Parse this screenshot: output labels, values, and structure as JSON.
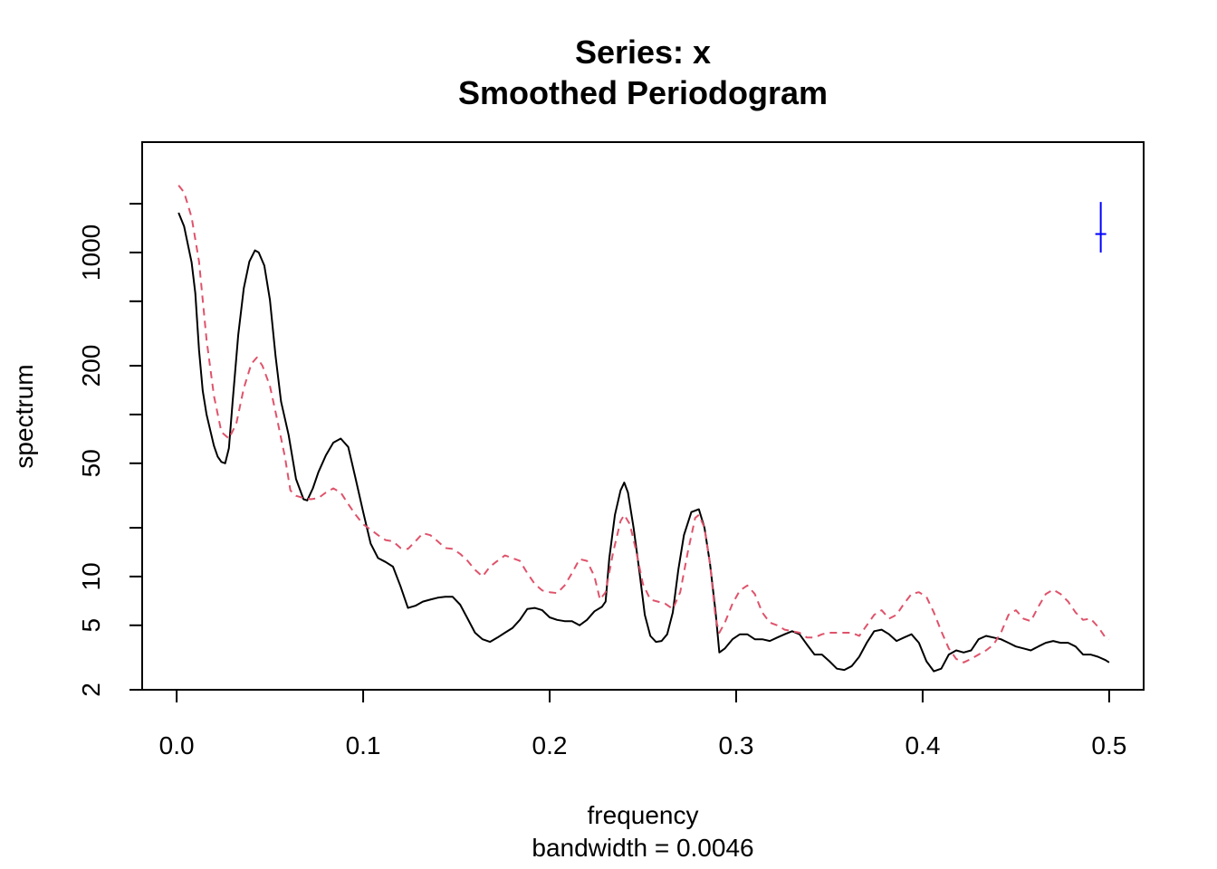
{
  "chart_data": {
    "type": "line",
    "title": "Series: x",
    "subtitle": "Smoothed Periodogram",
    "xlabel": "frequency",
    "xsublabel": "bandwidth = 0.0046",
    "ylabel": "spectrum",
    "xlim": [
      -0.0185,
      0.5185
    ],
    "ylim": [
      2,
      4800
    ],
    "ylog": true,
    "xticks": [
      0.0,
      0.1,
      0.2,
      0.3,
      0.4,
      0.5
    ],
    "xtick_labels": [
      "0.0",
      "0.1",
      "0.2",
      "0.3",
      "0.4",
      "0.5"
    ],
    "yticks": [
      2,
      5,
      10,
      20,
      50,
      100,
      200,
      500,
      1000,
      2000
    ],
    "ytick_labels": [
      "2",
      "5",
      "10",
      "",
      "50",
      "",
      "200",
      "",
      "1000",
      ""
    ],
    "series": [
      {
        "color": "#000000",
        "dash": "",
        "points": [
          [
            0.001,
            1760
          ],
          [
            0.004,
            1450
          ],
          [
            0.008,
            870
          ],
          [
            0.01,
            560
          ],
          [
            0.012,
            250
          ],
          [
            0.014,
            140
          ],
          [
            0.016,
            100
          ],
          [
            0.018,
            80
          ],
          [
            0.02,
            64
          ],
          [
            0.022,
            55
          ],
          [
            0.024,
            51
          ],
          [
            0.026,
            50
          ],
          [
            0.028,
            62
          ],
          [
            0.03,
            120
          ],
          [
            0.033,
            310
          ],
          [
            0.036,
            600
          ],
          [
            0.039,
            880
          ],
          [
            0.042,
            1030
          ],
          [
            0.044,
            1000
          ],
          [
            0.047,
            830
          ],
          [
            0.05,
            510
          ],
          [
            0.053,
            230
          ],
          [
            0.056,
            120
          ],
          [
            0.06,
            75
          ],
          [
            0.064,
            40
          ],
          [
            0.068,
            30
          ],
          [
            0.07,
            29.5
          ],
          [
            0.073,
            35
          ],
          [
            0.076,
            44
          ],
          [
            0.08,
            56
          ],
          [
            0.084,
            67
          ],
          [
            0.088,
            71
          ],
          [
            0.092,
            63
          ],
          [
            0.096,
            40
          ],
          [
            0.1,
            25
          ],
          [
            0.104,
            16
          ],
          [
            0.108,
            13
          ],
          [
            0.112,
            12.3
          ],
          [
            0.116,
            11.5
          ],
          [
            0.12,
            8.7
          ],
          [
            0.124,
            6.4
          ],
          [
            0.128,
            6.6
          ],
          [
            0.132,
            7.0
          ],
          [
            0.136,
            7.2
          ],
          [
            0.14,
            7.4
          ],
          [
            0.144,
            7.5
          ],
          [
            0.148,
            7.5
          ],
          [
            0.152,
            6.7
          ],
          [
            0.156,
            5.5
          ],
          [
            0.16,
            4.5
          ],
          [
            0.164,
            4.1
          ],
          [
            0.168,
            3.95
          ],
          [
            0.172,
            4.2
          ],
          [
            0.176,
            4.5
          ],
          [
            0.18,
            4.8
          ],
          [
            0.184,
            5.4
          ],
          [
            0.188,
            6.3
          ],
          [
            0.192,
            6.4
          ],
          [
            0.196,
            6.2
          ],
          [
            0.2,
            5.6
          ],
          [
            0.204,
            5.4
          ],
          [
            0.208,
            5.3
          ],
          [
            0.212,
            5.3
          ],
          [
            0.216,
            5.0
          ],
          [
            0.22,
            5.4
          ],
          [
            0.224,
            6.1
          ],
          [
            0.228,
            6.5
          ],
          [
            0.23,
            7.0
          ],
          [
            0.232,
            13
          ],
          [
            0.235,
            24
          ],
          [
            0.238,
            34
          ],
          [
            0.24,
            38
          ],
          [
            0.242,
            33
          ],
          [
            0.245,
            20
          ],
          [
            0.248,
            11
          ],
          [
            0.251,
            5.8
          ],
          [
            0.254,
            4.3
          ],
          [
            0.257,
            3.95
          ],
          [
            0.26,
            4.0
          ],
          [
            0.263,
            4.4
          ],
          [
            0.266,
            6
          ],
          [
            0.269,
            11
          ],
          [
            0.272,
            18
          ],
          [
            0.276,
            25
          ],
          [
            0.28,
            26
          ],
          [
            0.283,
            20
          ],
          [
            0.286,
            12
          ],
          [
            0.289,
            6
          ],
          [
            0.291,
            3.4
          ],
          [
            0.294,
            3.6
          ],
          [
            0.298,
            4.1
          ],
          [
            0.302,
            4.4
          ],
          [
            0.306,
            4.4
          ],
          [
            0.31,
            4.1
          ],
          [
            0.314,
            4.1
          ],
          [
            0.318,
            4.0
          ],
          [
            0.322,
            4.2
          ],
          [
            0.326,
            4.4
          ],
          [
            0.33,
            4.6
          ],
          [
            0.334,
            4.4
          ],
          [
            0.338,
            3.8
          ],
          [
            0.342,
            3.3
          ],
          [
            0.346,
            3.3
          ],
          [
            0.35,
            3.0
          ],
          [
            0.354,
            2.7
          ],
          [
            0.358,
            2.65
          ],
          [
            0.362,
            2.8
          ],
          [
            0.366,
            3.2
          ],
          [
            0.37,
            3.9
          ],
          [
            0.374,
            4.6
          ],
          [
            0.378,
            4.7
          ],
          [
            0.382,
            4.4
          ],
          [
            0.386,
            4.0
          ],
          [
            0.39,
            4.2
          ],
          [
            0.394,
            4.4
          ],
          [
            0.398,
            3.9
          ],
          [
            0.402,
            3.0
          ],
          [
            0.406,
            2.6
          ],
          [
            0.41,
            2.7
          ],
          [
            0.414,
            3.3
          ],
          [
            0.418,
            3.5
          ],
          [
            0.422,
            3.4
          ],
          [
            0.426,
            3.5
          ],
          [
            0.43,
            4.1
          ],
          [
            0.434,
            4.3
          ],
          [
            0.438,
            4.2
          ],
          [
            0.442,
            4.1
          ],
          [
            0.446,
            3.9
          ],
          [
            0.45,
            3.7
          ],
          [
            0.454,
            3.6
          ],
          [
            0.458,
            3.5
          ],
          [
            0.462,
            3.7
          ],
          [
            0.466,
            3.9
          ],
          [
            0.47,
            4.0
          ],
          [
            0.474,
            3.9
          ],
          [
            0.478,
            3.9
          ],
          [
            0.482,
            3.7
          ],
          [
            0.486,
            3.3
          ],
          [
            0.49,
            3.3
          ],
          [
            0.494,
            3.2
          ],
          [
            0.498,
            3.05
          ],
          [
            0.5,
            2.95
          ]
        ]
      },
      {
        "color": "#df536b",
        "dash": "8,6",
        "points": [
          [
            0.001,
            2600
          ],
          [
            0.004,
            2350
          ],
          [
            0.008,
            1650
          ],
          [
            0.012,
            880
          ],
          [
            0.016,
            290
          ],
          [
            0.02,
            130
          ],
          [
            0.024,
            78
          ],
          [
            0.028,
            71
          ],
          [
            0.032,
            88
          ],
          [
            0.036,
            145
          ],
          [
            0.04,
            205
          ],
          [
            0.043,
            225
          ],
          [
            0.046,
            200
          ],
          [
            0.05,
            150
          ],
          [
            0.054,
            92
          ],
          [
            0.058,
            55
          ],
          [
            0.061,
            34
          ],
          [
            0.064,
            31.5
          ],
          [
            0.068,
            30.5
          ],
          [
            0.072,
            30.0
          ],
          [
            0.076,
            30.5
          ],
          [
            0.08,
            33
          ],
          [
            0.084,
            35
          ],
          [
            0.088,
            33
          ],
          [
            0.092,
            28
          ],
          [
            0.096,
            24
          ],
          [
            0.1,
            21
          ],
          [
            0.104,
            19.5
          ],
          [
            0.108,
            18
          ],
          [
            0.112,
            16.8
          ],
          [
            0.116,
            16.5
          ],
          [
            0.12,
            15
          ],
          [
            0.124,
            14.8
          ],
          [
            0.128,
            16.5
          ],
          [
            0.132,
            18.5
          ],
          [
            0.136,
            18
          ],
          [
            0.14,
            16.5
          ],
          [
            0.144,
            15.0
          ],
          [
            0.148,
            14.8
          ],
          [
            0.152,
            13.8
          ],
          [
            0.156,
            12.5
          ],
          [
            0.16,
            11.0
          ],
          [
            0.164,
            10.0
          ],
          [
            0.168,
            11.5
          ],
          [
            0.172,
            12.5
          ],
          [
            0.176,
            13.5
          ],
          [
            0.18,
            13.0
          ],
          [
            0.184,
            12.5
          ],
          [
            0.188,
            10.5
          ],
          [
            0.192,
            9.0
          ],
          [
            0.196,
            8.2
          ],
          [
            0.2,
            8.0
          ],
          [
            0.204,
            7.9
          ],
          [
            0.208,
            8.8
          ],
          [
            0.212,
            10.5
          ],
          [
            0.216,
            12.8
          ],
          [
            0.22,
            12.5
          ],
          [
            0.224,
            10
          ],
          [
            0.227,
            7.2
          ],
          [
            0.23,
            8.0
          ],
          [
            0.234,
            14
          ],
          [
            0.238,
            22
          ],
          [
            0.24,
            24
          ],
          [
            0.243,
            21
          ],
          [
            0.246,
            15
          ],
          [
            0.25,
            9
          ],
          [
            0.254,
            7.2
          ],
          [
            0.258,
            7.0
          ],
          [
            0.262,
            6.8
          ],
          [
            0.266,
            6.3
          ],
          [
            0.27,
            8
          ],
          [
            0.274,
            14
          ],
          [
            0.278,
            23
          ],
          [
            0.28,
            24
          ],
          [
            0.283,
            20
          ],
          [
            0.286,
            12
          ],
          [
            0.289,
            5.5
          ],
          [
            0.291,
            4.5
          ],
          [
            0.294,
            5.2
          ],
          [
            0.298,
            6.8
          ],
          [
            0.302,
            8.2
          ],
          [
            0.306,
            8.8
          ],
          [
            0.31,
            7.8
          ],
          [
            0.314,
            6.0
          ],
          [
            0.318,
            5.2
          ],
          [
            0.322,
            5.0
          ],
          [
            0.326,
            4.7
          ],
          [
            0.33,
            4.6
          ],
          [
            0.334,
            4.5
          ],
          [
            0.338,
            4.2
          ],
          [
            0.342,
            4.2
          ],
          [
            0.346,
            4.4
          ],
          [
            0.35,
            4.5
          ],
          [
            0.354,
            4.5
          ],
          [
            0.358,
            4.5
          ],
          [
            0.362,
            4.5
          ],
          [
            0.366,
            4.3
          ],
          [
            0.37,
            5.0
          ],
          [
            0.374,
            5.8
          ],
          [
            0.378,
            6.2
          ],
          [
            0.382,
            5.5
          ],
          [
            0.386,
            5.8
          ],
          [
            0.39,
            6.8
          ],
          [
            0.394,
            7.8
          ],
          [
            0.398,
            8.0
          ],
          [
            0.402,
            7.5
          ],
          [
            0.406,
            6.0
          ],
          [
            0.41,
            4.6
          ],
          [
            0.414,
            3.6
          ],
          [
            0.418,
            3.1
          ],
          [
            0.422,
            2.95
          ],
          [
            0.426,
            3.1
          ],
          [
            0.43,
            3.3
          ],
          [
            0.434,
            3.5
          ],
          [
            0.438,
            3.8
          ],
          [
            0.442,
            4.5
          ],
          [
            0.446,
            5.8
          ],
          [
            0.45,
            6.2
          ],
          [
            0.454,
            5.5
          ],
          [
            0.458,
            5.3
          ],
          [
            0.462,
            6.5
          ],
          [
            0.466,
            7.8
          ],
          [
            0.47,
            8.3
          ],
          [
            0.474,
            7.8
          ],
          [
            0.478,
            7.0
          ],
          [
            0.482,
            6.0
          ],
          [
            0.486,
            5.4
          ],
          [
            0.49,
            5.5
          ],
          [
            0.494,
            4.9
          ],
          [
            0.498,
            4.2
          ],
          [
            0.5,
            4.1
          ]
        ]
      }
    ],
    "ci_bar": {
      "color": "#0000ff",
      "x": 0.4955,
      "center": 1300,
      "low": 1000,
      "high": 2050
    }
  }
}
